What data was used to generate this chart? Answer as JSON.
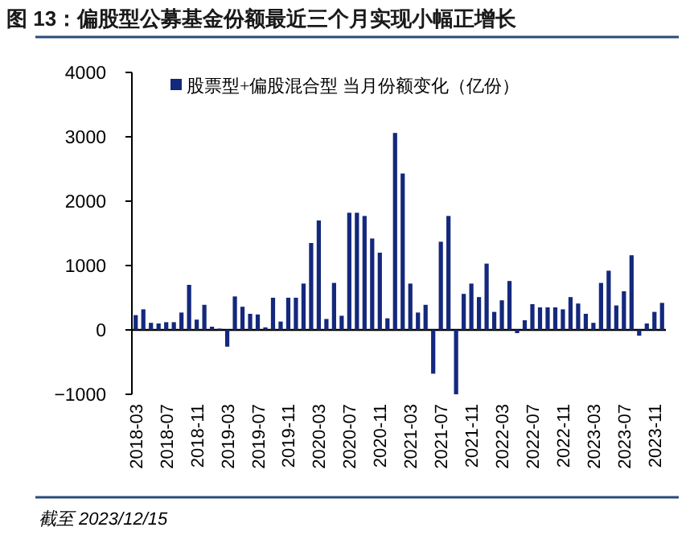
{
  "chart_data": {
    "type": "bar",
    "title": "图 13：偏股型公募基金份额最近三个月实现小幅正增长",
    "categories": [
      "2018-03",
      null,
      null,
      null,
      "2018-07",
      null,
      null,
      null,
      "2018-11",
      null,
      null,
      null,
      "2019-03",
      null,
      null,
      null,
      "2019-07",
      null,
      null,
      null,
      "2019-11",
      null,
      null,
      null,
      "2020-03",
      null,
      null,
      null,
      "2020-07",
      null,
      null,
      null,
      "2020-11",
      null,
      null,
      null,
      "2021-03",
      null,
      null,
      null,
      "2021-07",
      null,
      null,
      null,
      "2021-11",
      null,
      null,
      null,
      "2022-03",
      null,
      null,
      null,
      "2022-07",
      null,
      null,
      null,
      "2022-11",
      null,
      null,
      null,
      "2023-03",
      null,
      null,
      null,
      "2023-07",
      null,
      null,
      null,
      "2023-11",
      null
    ],
    "series": [
      {
        "name": "股票型+偏股混合型 当月份额变化（亿份）",
        "color": "#14287c",
        "values": [
          230,
          320,
          110,
          100,
          120,
          120,
          270,
          700,
          160,
          390,
          50,
          20,
          -260,
          520,
          360,
          250,
          240,
          40,
          500,
          130,
          500,
          500,
          720,
          1350,
          1700,
          170,
          730,
          220,
          1820,
          1820,
          1770,
          1420,
          1200,
          180,
          3060,
          2430,
          720,
          270,
          390,
          -680,
          1370,
          1770,
          -1000,
          560,
          720,
          510,
          1030,
          280,
          460,
          760,
          -50,
          150,
          400,
          350,
          350,
          350,
          320,
          510,
          410,
          250,
          110,
          730,
          920,
          380,
          600,
          1160,
          -90,
          100,
          280,
          420
        ]
      }
    ],
    "ylim": [
      -1000,
      4000
    ],
    "yticks": [
      -1000,
      0,
      1000,
      2000,
      3000,
      4000
    ],
    "legend": "top left",
    "annotations": [
      "截至 2023/12/15"
    ]
  }
}
